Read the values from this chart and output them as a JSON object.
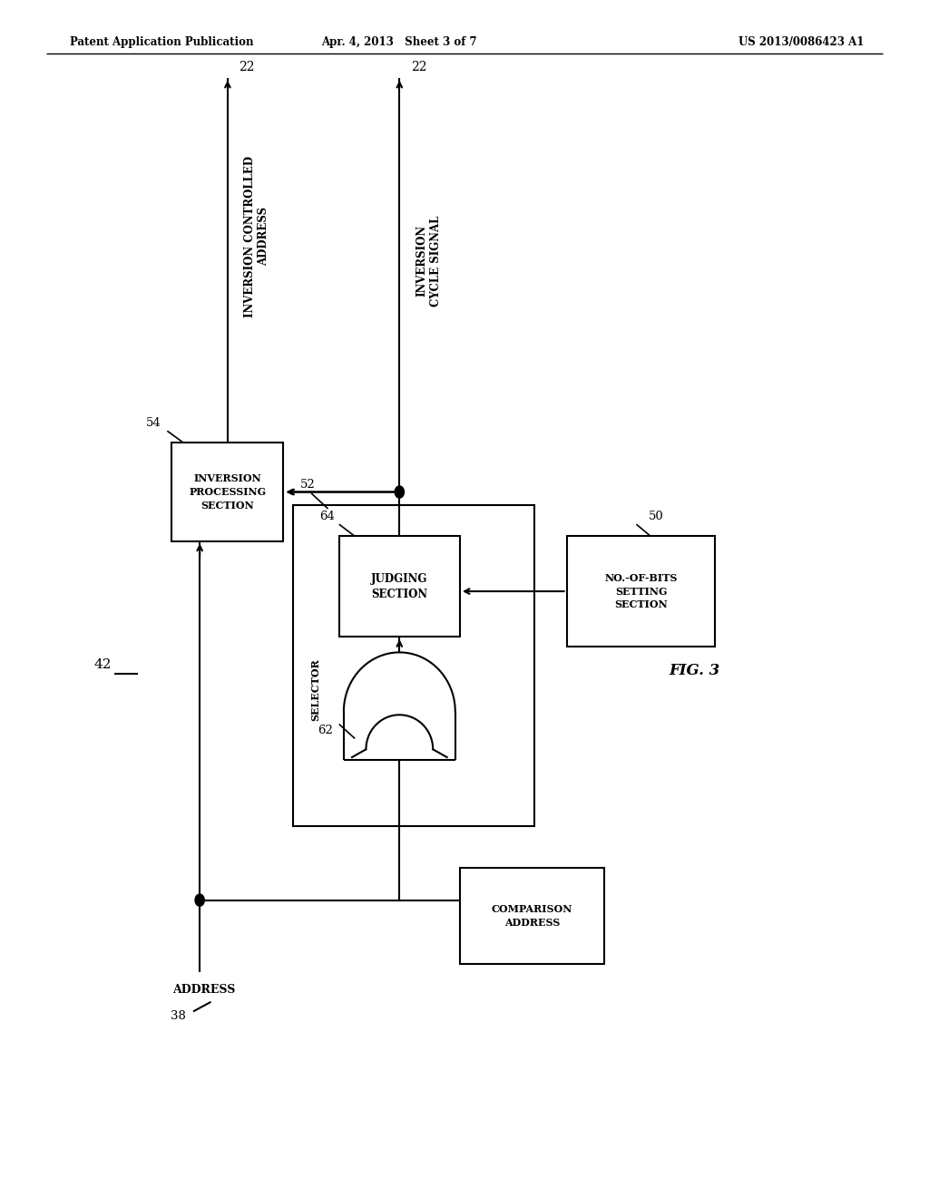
{
  "bg_color": "#ffffff",
  "lc": "#000000",
  "header_left": "Patent Application Publication",
  "header_mid": "Apr. 4, 2013   Sheet 3 of 7",
  "header_right": "US 2013/0086423 A1",
  "label_42": "42",
  "label_38": "38",
  "label_50": "50",
  "label_52": "52",
  "label_54": "54",
  "label_62": "62",
  "label_64": "64",
  "label_22a": "22",
  "label_22b": "22",
  "fig_label": "FIG. 3",
  "text_inv_proc": "INVERSION\nPROCESSING\nSECTION",
  "text_judging": "JUDGING\nSECTION",
  "text_nob": "NO.-OF-BITS\nSETTING\nSECTION",
  "text_selector": "SELECTOR",
  "text_address": "ADDRESS",
  "text_comp_addr": "COMPARISON\nADDRESS",
  "text_inv_ctrl": "INVERSION CONTROLLED\nADDRESS",
  "text_inv_cycle": "INVERSION\nCYCLE SIGNAL"
}
